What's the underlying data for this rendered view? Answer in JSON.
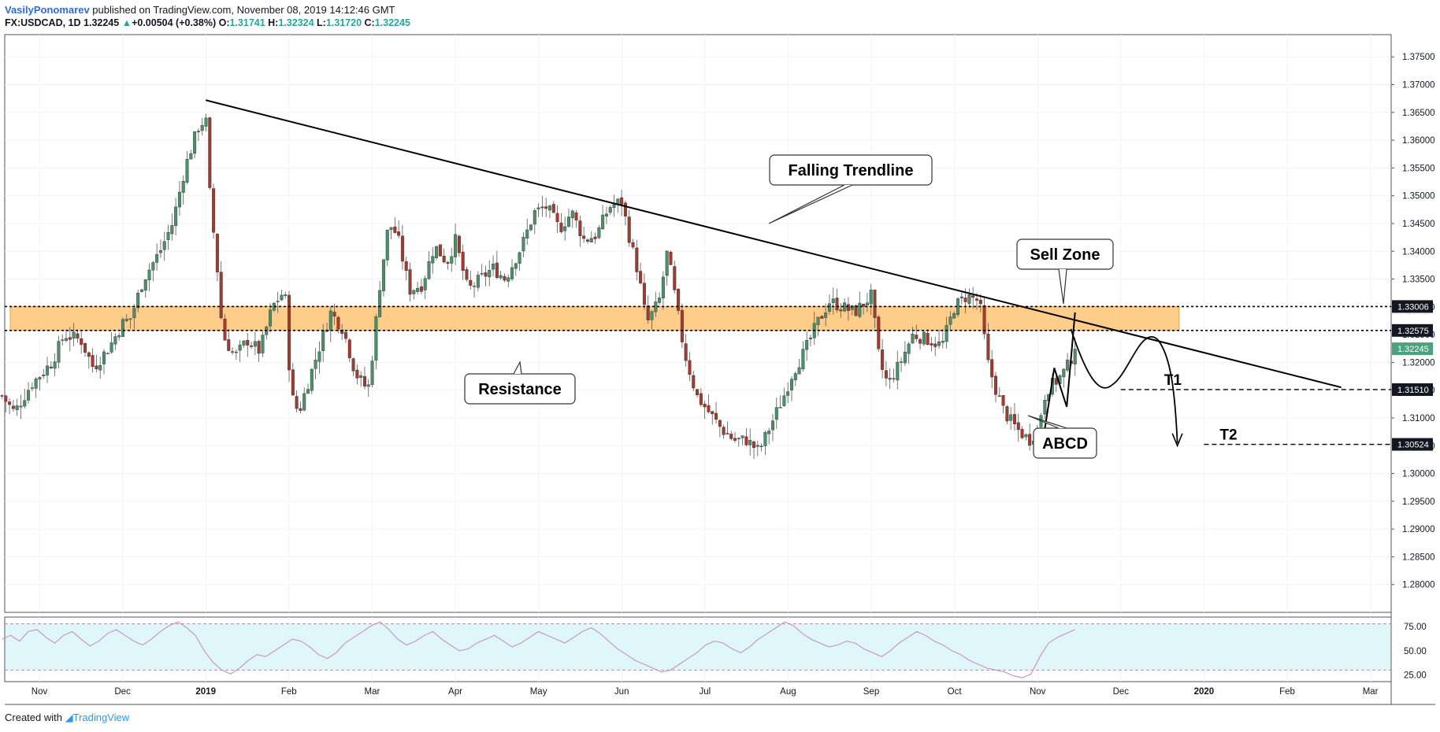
{
  "header": {
    "author": "VasilyPonomarev",
    "published": " published on TradingView.com, November 08, 2019 14:12:46 GMT",
    "symbol": "FX:USDCAD, 1D",
    "last": "1.32245",
    "change": "+0.00504 (+0.38%)",
    "o_label": "O:",
    "o_value": "1.31741",
    "h_label": "H:",
    "h_value": "1.32324",
    "l_label": "L:",
    "l_value": "1.31720",
    "c_label": "C:",
    "c_value": "1.32245"
  },
  "footer": {
    "created_with": "Created with",
    "brand": "TradingView"
  },
  "chart_data": {
    "type": "candlestick",
    "symbol": "USDCAD",
    "interval": "1D",
    "price_axis": {
      "ylim": [
        1.275,
        1.379
      ],
      "ticks": [
        "1.28000",
        "1.28500",
        "1.29000",
        "1.29500",
        "1.30000",
        "1.30500",
        "1.31000",
        "1.31500",
        "1.32000",
        "1.32500",
        "1.33000",
        "1.33500",
        "1.34000",
        "1.34500",
        "1.35000",
        "1.35500",
        "1.36000",
        "1.36500",
        "1.37000",
        "1.37500"
      ]
    },
    "time_axis": {
      "labels": [
        {
          "text": "Nov",
          "m": 0
        },
        {
          "text": "Dec",
          "m": 1
        },
        {
          "text": "2019",
          "m": 2,
          "bold": true
        },
        {
          "text": "Feb",
          "m": 3
        },
        {
          "text": "Mar",
          "m": 4
        },
        {
          "text": "Apr",
          "m": 5
        },
        {
          "text": "May",
          "m": 6
        },
        {
          "text": "Jun",
          "m": 7
        },
        {
          "text": "Jul",
          "m": 8
        },
        {
          "text": "Aug",
          "m": 9
        },
        {
          "text": "Sep",
          "m": 10
        },
        {
          "text": "Oct",
          "m": 11
        },
        {
          "text": "Nov",
          "m": 12
        },
        {
          "text": "Dec",
          "m": 13
        },
        {
          "text": "2020",
          "m": 14,
          "bold": true
        },
        {
          "text": "Feb",
          "m": 15
        },
        {
          "text": "Mar",
          "m": 16
        }
      ]
    },
    "price_path": [
      [
        -0.45,
        1.314
      ],
      [
        -0.3,
        1.311
      ],
      [
        -0.1,
        1.316
      ],
      [
        0.15,
        1.32
      ],
      [
        0.3,
        1.325
      ],
      [
        0.5,
        1.324
      ],
      [
        0.65,
        1.319
      ],
      [
        0.85,
        1.323
      ],
      [
        1.0,
        1.327
      ],
      [
        1.1,
        1.328
      ],
      [
        1.25,
        1.335
      ],
      [
        1.45,
        1.34
      ],
      [
        1.6,
        1.345
      ],
      [
        1.75,
        1.355
      ],
      [
        1.9,
        1.362
      ],
      [
        2.0,
        1.364
      ],
      [
        2.05,
        1.35
      ],
      [
        2.15,
        1.335
      ],
      [
        2.2,
        1.325
      ],
      [
        2.35,
        1.321
      ],
      [
        2.5,
        1.324
      ],
      [
        2.65,
        1.322
      ],
      [
        2.8,
        1.33
      ],
      [
        2.95,
        1.333
      ],
      [
        3.0,
        1.32
      ],
      [
        3.05,
        1.313
      ],
      [
        3.12,
        1.311
      ],
      [
        3.2,
        1.315
      ],
      [
        3.35,
        1.322
      ],
      [
        3.5,
        1.329
      ],
      [
        3.65,
        1.326
      ],
      [
        3.8,
        1.318
      ],
      [
        3.95,
        1.315
      ],
      [
        4.0,
        1.321
      ],
      [
        4.1,
        1.335
      ],
      [
        4.2,
        1.345
      ],
      [
        4.3,
        1.343
      ],
      [
        4.45,
        1.333
      ],
      [
        4.6,
        1.334
      ],
      [
        4.75,
        1.341
      ],
      [
        4.9,
        1.338
      ],
      [
        5.0,
        1.342
      ],
      [
        5.15,
        1.333
      ],
      [
        5.3,
        1.335
      ],
      [
        5.45,
        1.337
      ],
      [
        5.6,
        1.335
      ],
      [
        5.8,
        1.341
      ],
      [
        5.95,
        1.347
      ],
      [
        6.1,
        1.348
      ],
      [
        6.25,
        1.344
      ],
      [
        6.4,
        1.347
      ],
      [
        6.55,
        1.342
      ],
      [
        6.7,
        1.343
      ],
      [
        6.85,
        1.348
      ],
      [
        7.0,
        1.349
      ],
      [
        7.1,
        1.342
      ],
      [
        7.2,
        1.336
      ],
      [
        7.3,
        1.327
      ],
      [
        7.45,
        1.331
      ],
      [
        7.55,
        1.34
      ],
      [
        7.65,
        1.331
      ],
      [
        7.75,
        1.322
      ],
      [
        7.9,
        1.314
      ],
      [
        8.05,
        1.311
      ],
      [
        8.2,
        1.308
      ],
      [
        8.35,
        1.306
      ],
      [
        8.5,
        1.306
      ],
      [
        8.65,
        1.304
      ],
      [
        8.8,
        1.309
      ],
      [
        8.95,
        1.314
      ],
      [
        9.05,
        1.318
      ],
      [
        9.2,
        1.322
      ],
      [
        9.35,
        1.327
      ],
      [
        9.5,
        1.331
      ],
      [
        9.65,
        1.33
      ],
      [
        9.8,
        1.329
      ],
      [
        10.0,
        1.332
      ],
      [
        10.1,
        1.32
      ],
      [
        10.2,
        1.316
      ],
      [
        10.35,
        1.32
      ],
      [
        10.5,
        1.325
      ],
      [
        10.7,
        1.324
      ],
      [
        10.85,
        1.323
      ],
      [
        11.0,
        1.33
      ],
      [
        11.15,
        1.332
      ],
      [
        11.3,
        1.331
      ],
      [
        11.4,
        1.32
      ],
      [
        11.5,
        1.315
      ],
      [
        11.6,
        1.311
      ],
      [
        11.75,
        1.308
      ],
      [
        11.9,
        1.306
      ],
      [
        12.0,
        1.308
      ],
      [
        12.1,
        1.315
      ],
      [
        12.25,
        1.317
      ],
      [
        12.35,
        1.319
      ],
      [
        12.45,
        1.3224
      ]
    ],
    "rsi": {
      "levels": [
        "75.00",
        "50.00",
        "25.00"
      ],
      "ylim": [
        18,
        85
      ],
      "band": [
        30,
        78
      ],
      "values": [
        62,
        66,
        60,
        70,
        72,
        64,
        58,
        66,
        70,
        62,
        55,
        60,
        68,
        72,
        66,
        60,
        56,
        62,
        70,
        76,
        80,
        74,
        66,
        50,
        38,
        30,
        26,
        32,
        40,
        46,
        44,
        50,
        56,
        62,
        60,
        54,
        46,
        42,
        48,
        58,
        64,
        70,
        76,
        80,
        72,
        62,
        56,
        60,
        66,
        70,
        62,
        56,
        50,
        52,
        58,
        62,
        66,
        60,
        54,
        58,
        64,
        70,
        66,
        62,
        58,
        64,
        70,
        74,
        68,
        60,
        52,
        46,
        40,
        36,
        32,
        28,
        30,
        36,
        42,
        48,
        56,
        60,
        58,
        52,
        48,
        54,
        62,
        68,
        74,
        80,
        76,
        68,
        62,
        58,
        54,
        56,
        60,
        58,
        52,
        48,
        44,
        50,
        58,
        64,
        70,
        66,
        60,
        56,
        50,
        46,
        40,
        36,
        32,
        30,
        28,
        24,
        22,
        26,
        44,
        58,
        64,
        68,
        72
      ]
    },
    "price_labels": [
      {
        "text": "1.33006",
        "value": 1.33006,
        "style": "dark"
      },
      {
        "text": "1.32575",
        "value": 1.32575,
        "style": "dark"
      },
      {
        "text": "1.32245",
        "value": 1.32245,
        "style": "last"
      },
      {
        "text": "1.31510",
        "value": 1.3151,
        "style": "dark"
      },
      {
        "text": "1.30524",
        "value": 1.30524,
        "style": "dark"
      }
    ],
    "zone": {
      "from_m": -0.35,
      "to_m": 13.7,
      "low": 1.32575,
      "high": 1.33006,
      "color": "#ffc476"
    },
    "trendline": {
      "m1": 2.0,
      "p1": 1.3672,
      "m2": 15.65,
      "p2": 1.3155
    },
    "targets": [
      {
        "label": "T1",
        "price": 1.3151,
        "from_m": 13.0
      },
      {
        "label": "T2",
        "price": 1.30524,
        "from_m": 14.0
      }
    ],
    "callouts": [
      {
        "text": "Falling Trendline"
      },
      {
        "text": "Sell Zone"
      },
      {
        "text": "Resistance"
      },
      {
        "text": "ABCD"
      }
    ],
    "colors": {
      "up": "#4c8f6b",
      "down": "#a33a2e",
      "rsi_line": "#c68fc3",
      "rsi_band": "#e0f7fa"
    }
  }
}
